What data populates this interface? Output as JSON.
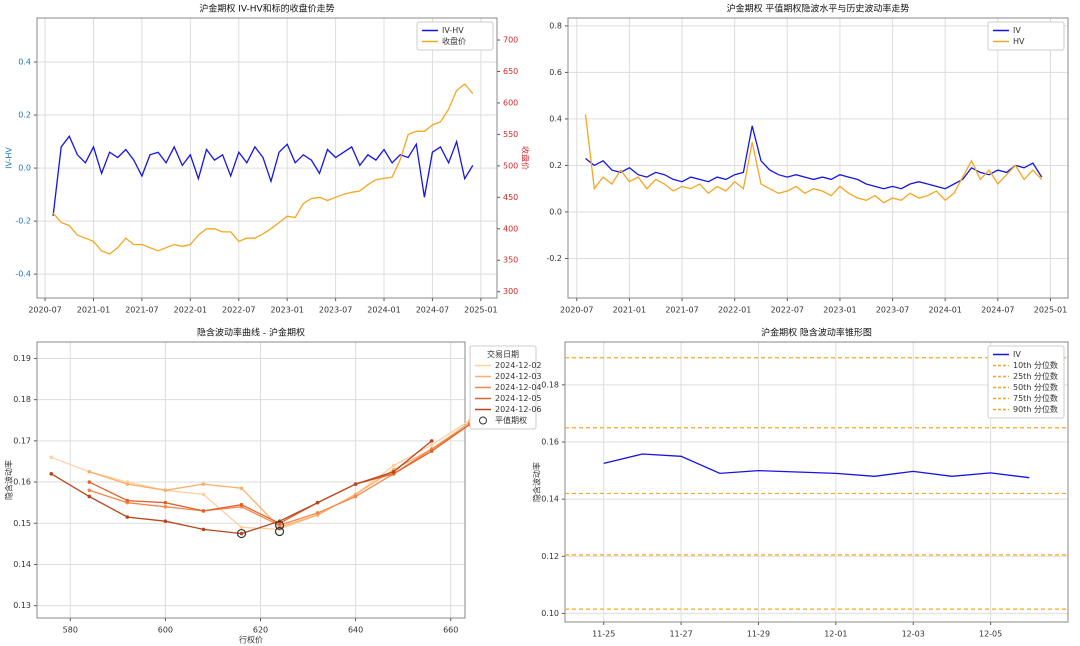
{
  "chart_data": [
    {
      "type": "line",
      "title": "沪金期权 IV-HV和标的收盘价走势",
      "ylabel": "IV-HV",
      "y2label": "收盘价",
      "ylabel_color": "#1f77b4",
      "y2_color": "#d62728",
      "x": [
        "2020-08",
        "2020-09",
        "2020-10",
        "2020-11",
        "2020-12",
        "2021-01",
        "2021-02",
        "2021-03",
        "2021-04",
        "2021-05",
        "2021-06",
        "2021-07",
        "2021-08",
        "2021-09",
        "2021-10",
        "2021-11",
        "2021-12",
        "2022-01",
        "2022-02",
        "2022-03",
        "2022-04",
        "2022-05",
        "2022-06",
        "2022-07",
        "2022-08",
        "2022-09",
        "2022-10",
        "2022-11",
        "2022-12",
        "2023-01",
        "2023-02",
        "2023-03",
        "2023-04",
        "2023-05",
        "2023-06",
        "2023-07",
        "2023-08",
        "2023-09",
        "2023-10",
        "2023-11",
        "2023-12",
        "2024-01",
        "2024-02",
        "2024-03",
        "2024-04",
        "2024-05",
        "2024-06",
        "2024-07",
        "2024-08",
        "2024-09",
        "2024-10",
        "2024-11",
        "2024-12"
      ],
      "series": [
        {
          "name": "IV-HV",
          "color": "#1515e0",
          "values": [
            -0.18,
            0.08,
            0.12,
            0.05,
            0.02,
            0.08,
            -0.02,
            0.06,
            0.04,
            0.07,
            0.03,
            -0.03,
            0.05,
            0.06,
            0.02,
            0.08,
            0.01,
            0.05,
            -0.04,
            0.07,
            0.03,
            0.05,
            -0.03,
            0.06,
            0.02,
            0.08,
            0.04,
            -0.05,
            0.06,
            0.09,
            0.02,
            0.05,
            0.03,
            -0.02,
            0.07,
            0.04,
            0.06,
            0.08,
            0.01,
            0.05,
            0.03,
            0.07,
            0.02,
            0.05,
            0.04,
            0.09,
            -0.11,
            0.06,
            0.08,
            0.02,
            0.1,
            -0.04,
            0.01
          ]
        },
        {
          "name": "收盘价",
          "color": "#f5a623",
          "axis": "y2",
          "values": [
            425,
            410,
            405,
            390,
            385,
            380,
            365,
            360,
            370,
            385,
            375,
            375,
            370,
            365,
            370,
            375,
            372,
            375,
            390,
            400,
            400,
            395,
            395,
            380,
            385,
            385,
            392,
            400,
            410,
            420,
            418,
            440,
            448,
            450,
            445,
            450,
            455,
            458,
            460,
            470,
            478,
            480,
            482,
            510,
            550,
            555,
            555,
            565,
            570,
            590,
            620,
            630,
            615
          ]
        }
      ],
      "xlim": [
        "2020-06",
        "2025-03"
      ],
      "xticks": [
        "2020-07",
        "2021-01",
        "2021-07",
        "2022-01",
        "2022-07",
        "2023-01",
        "2023-07",
        "2024-01",
        "2024-07",
        "2025-01"
      ],
      "ylim": [
        -0.49,
        0.566
      ],
      "yticks": [
        -0.4,
        -0.2,
        {
          "value": 0,
          "label": "0.0"
        },
        0.2,
        0.4
      ],
      "y2lim": [
        290,
        735
      ],
      "y2ticks": [
        300,
        350,
        400,
        450,
        500,
        550,
        600,
        650,
        700
      ],
      "grid": true,
      "legend": "upper right"
    },
    {
      "type": "line",
      "title": "沪金期权 平值期权隐波水平与历史波动率走势",
      "x": [
        "2020-08",
        "2020-09",
        "2020-10",
        "2020-11",
        "2020-12",
        "2021-01",
        "2021-02",
        "2021-03",
        "2021-04",
        "2021-05",
        "2021-06",
        "2021-07",
        "2021-08",
        "2021-09",
        "2021-10",
        "2021-11",
        "2021-12",
        "2022-01",
        "2022-02",
        "2022-03",
        "2022-04",
        "2022-05",
        "2022-06",
        "2022-07",
        "2022-08",
        "2022-09",
        "2022-10",
        "2022-11",
        "2022-12",
        "2023-01",
        "2023-02",
        "2023-03",
        "2023-04",
        "2023-05",
        "2023-06",
        "2023-07",
        "2023-08",
        "2023-09",
        "2023-10",
        "2023-11",
        "2023-12",
        "2024-01",
        "2024-02",
        "2024-03",
        "2024-04",
        "2024-05",
        "2024-06",
        "2024-07",
        "2024-08",
        "2024-09",
        "2024-10",
        "2024-11",
        "2024-12"
      ],
      "series": [
        {
          "name": "IV",
          "color": "#1515e0",
          "values": [
            0.23,
            0.2,
            0.22,
            0.18,
            0.17,
            0.19,
            0.16,
            0.15,
            0.17,
            0.16,
            0.14,
            0.13,
            0.15,
            0.14,
            0.13,
            0.15,
            0.14,
            0.16,
            0.17,
            0.37,
            0.22,
            0.18,
            0.16,
            0.15,
            0.16,
            0.15,
            0.14,
            0.15,
            0.14,
            0.16,
            0.15,
            0.14,
            0.12,
            0.11,
            0.1,
            0.11,
            0.1,
            0.12,
            0.13,
            0.12,
            0.11,
            0.1,
            0.12,
            0.14,
            0.19,
            0.17,
            0.16,
            0.18,
            0.17,
            0.2,
            0.19,
            0.21,
            0.15
          ]
        },
        {
          "name": "HV",
          "color": "#f5a623",
          "values": [
            0.42,
            0.1,
            0.15,
            0.12,
            0.18,
            0.13,
            0.15,
            0.1,
            0.14,
            0.12,
            0.09,
            0.11,
            0.1,
            0.12,
            0.08,
            0.11,
            0.09,
            0.13,
            0.1,
            0.3,
            0.12,
            0.1,
            0.08,
            0.09,
            0.11,
            0.08,
            0.1,
            0.09,
            0.07,
            0.11,
            0.08,
            0.06,
            0.05,
            0.07,
            0.04,
            0.06,
            0.05,
            0.08,
            0.06,
            0.07,
            0.09,
            0.05,
            0.08,
            0.15,
            0.22,
            0.14,
            0.18,
            0.12,
            0.16,
            0.2,
            0.14,
            0.18,
            0.14
          ]
        }
      ],
      "xlim": [
        "2020-06",
        "2025-03"
      ],
      "xticks": [
        "2020-07",
        "2021-01",
        "2021-07",
        "2022-01",
        "2022-07",
        "2023-01",
        "2023-07",
        "2024-01",
        "2024-07",
        "2025-01"
      ],
      "ylim": [
        -0.37,
        0.834
      ],
      "yticks": [
        -0.2,
        {
          "value": 0,
          "label": "0.0"
        },
        0.2,
        0.4,
        0.6,
        0.8
      ],
      "grid": true,
      "legend": "upper right"
    },
    {
      "type": "line",
      "title": "隐含波动率曲线 - 沪金期权",
      "xlabel": "行权价",
      "ylabel": "隐含波动率",
      "legend_title": "交易日期",
      "markers": true,
      "series": [
        {
          "name": "2024-12-02",
          "color": "#fdd0a2",
          "x": [
            576,
            584,
            592,
            600,
            608,
            616,
            624,
            632,
            640,
            648,
            656,
            664
          ],
          "values": [
            0.166,
            0.1625,
            0.16,
            0.158,
            0.157,
            0.149,
            0.1485,
            0.152,
            0.157,
            0.164,
            0.169,
            0.175
          ]
        },
        {
          "name": "2024-12-03",
          "color": "#fdae6b",
          "x": [
            584,
            592,
            600,
            608,
            616,
            624,
            632,
            640,
            648,
            656,
            664
          ],
          "values": [
            0.1625,
            0.1595,
            0.158,
            0.1595,
            0.1585,
            0.149,
            0.152,
            0.157,
            0.163,
            0.168,
            0.1745
          ]
        },
        {
          "name": "2024-12-04",
          "color": "#f4874a",
          "x": [
            584,
            592,
            600,
            608,
            616,
            624,
            632,
            640,
            648,
            656,
            664
          ],
          "values": [
            0.158,
            0.155,
            0.154,
            0.153,
            0.154,
            0.1495,
            0.1525,
            0.1565,
            0.162,
            0.168,
            0.174
          ]
        },
        {
          "name": "2024-12-05",
          "color": "#e0622b",
          "x": [
            584,
            592,
            600,
            608,
            616,
            624,
            632,
            640,
            648,
            656,
            664
          ],
          "values": [
            0.16,
            0.1555,
            0.155,
            0.153,
            0.1545,
            0.15,
            0.155,
            0.1595,
            0.162,
            0.1675,
            0.174
          ]
        },
        {
          "name": "2024-12-06",
          "color": "#b8461c",
          "x": [
            576,
            584,
            592,
            600,
            608,
            616,
            624,
            632,
            640,
            648,
            656
          ],
          "values": [
            0.162,
            0.1565,
            0.1515,
            0.1505,
            0.1485,
            0.1475,
            0.1505,
            0.155,
            0.1595,
            0.1625,
            0.17
          ]
        }
      ],
      "atm": {
        "name": "平值期权",
        "x": [
          616,
          624,
          624
        ],
        "values": [
          0.1475,
          0.148,
          0.1495
        ]
      },
      "xlim": [
        573,
        663
      ],
      "xticks": [
        580,
        600,
        620,
        640,
        660
      ],
      "ylim": [
        0.127,
        0.194
      ],
      "yticks": [
        0.13,
        0.14,
        0.15,
        0.16,
        0.17,
        0.18,
        0.19
      ],
      "grid": true,
      "legend": "outside right"
    },
    {
      "type": "line",
      "title": "沪金期权 隐含波动率锥形图",
      "ylabel": "隐含波动率",
      "series": [
        {
          "name": "IV",
          "color": "#1515e0",
          "x": [
            "11-25",
            "11-26",
            "11-27",
            "11-28",
            "11-29",
            "11-30",
            "12-01",
            "12-02",
            "12-03",
            "12-04",
            "12-05",
            "12-06"
          ],
          "values": [
            0.1525,
            0.1558,
            0.155,
            0.149,
            0.15,
            0.1495,
            0.149,
            0.148,
            0.1497,
            0.148,
            0.1492,
            0.1475
          ]
        }
      ],
      "hlines": [
        {
          "name": "10th 分位数",
          "color": "#f5a623",
          "value": 0.1015
        },
        {
          "name": "25th 分位数",
          "color": "#f5a623",
          "value": 0.1205
        },
        {
          "name": "50th 分位数",
          "color": "#f5a623",
          "value": 0.142
        },
        {
          "name": "75th 分位数",
          "color": "#f5a623",
          "value": 0.165
        },
        {
          "name": "90th 分位数",
          "color": "#f5a623",
          "value": 0.1895
        }
      ],
      "xlim": [
        "11-24",
        "12-07"
      ],
      "xticks": [
        "11-25",
        "11-27",
        "11-29",
        "12-01",
        "12-03",
        "12-05"
      ],
      "ylim": [
        0.097,
        0.195
      ],
      "yticks": [
        {
          "value": 0.1,
          "label": "0.10"
        },
        0.12,
        0.14,
        0.16,
        0.18
      ],
      "grid": true,
      "legend": "upper right"
    }
  ]
}
